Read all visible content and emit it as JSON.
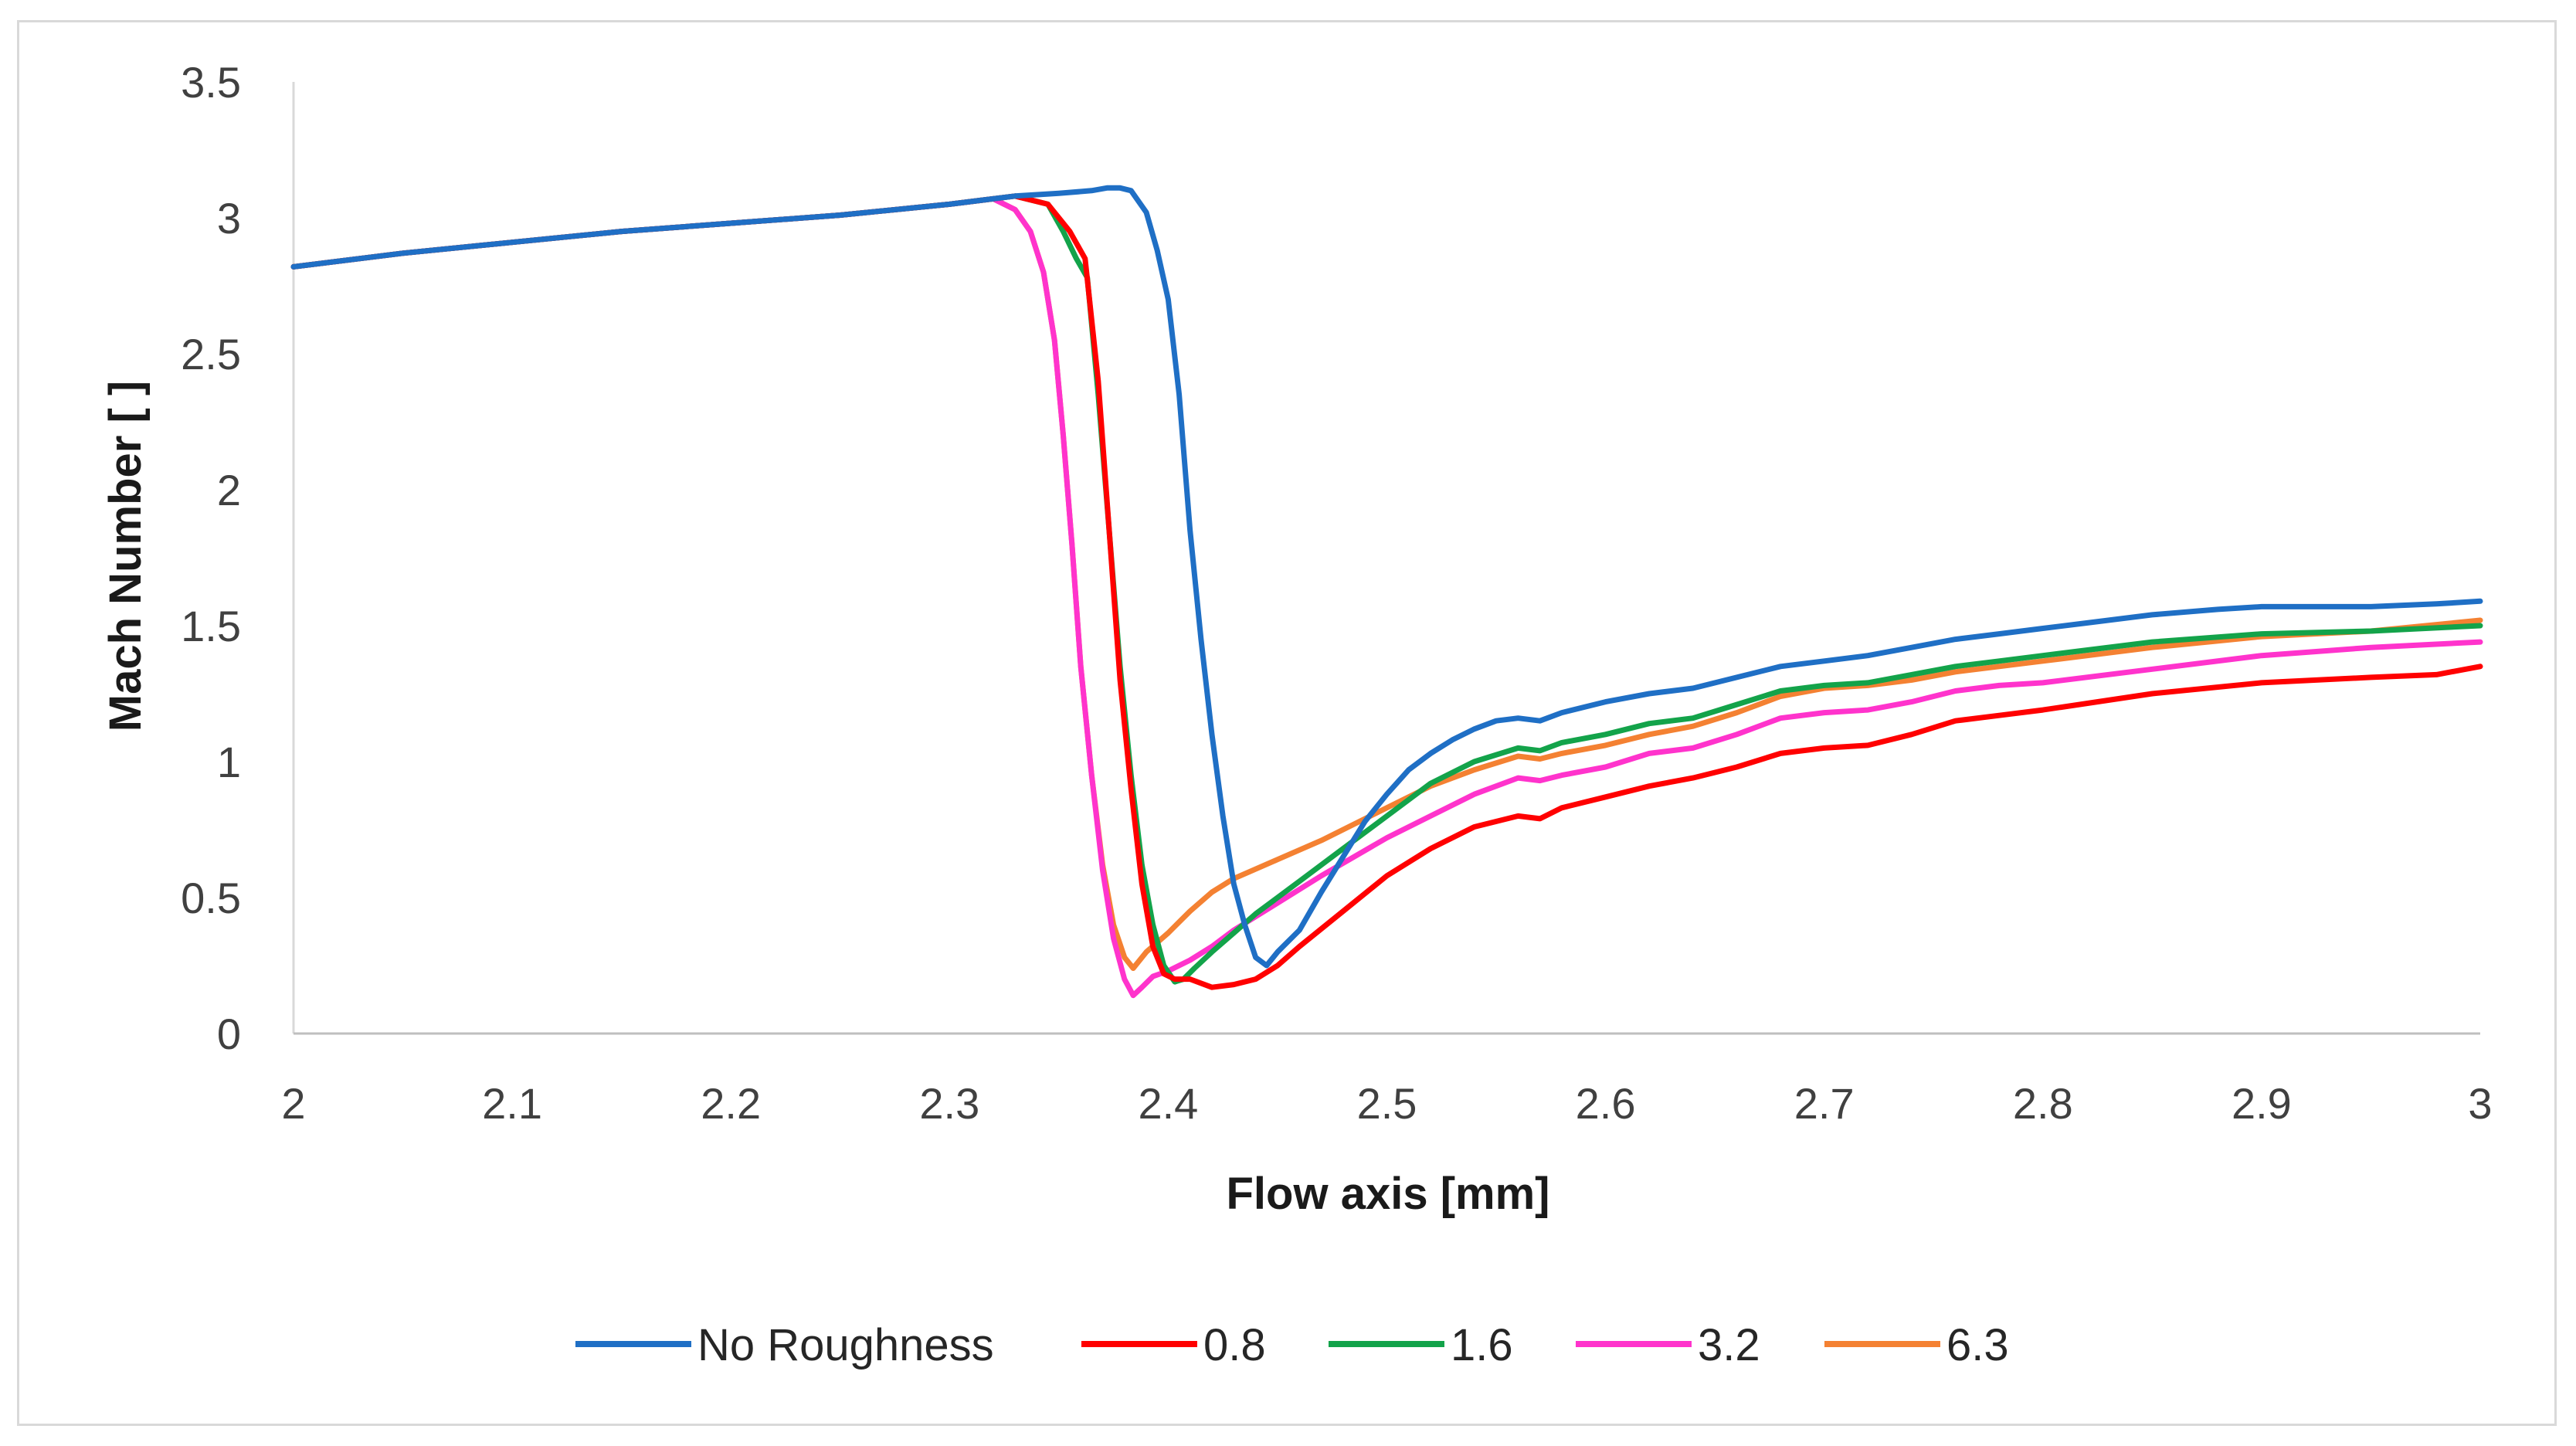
{
  "chart_data": {
    "type": "line",
    "title": "",
    "xlabel": "Flow axis [mm]",
    "ylabel": "Mach Number [ ]",
    "xlim": [
      2,
      3
    ],
    "ylim": [
      0,
      3.5
    ],
    "xticks": [
      "2",
      "2.1",
      "2.2",
      "2.3",
      "2.4",
      "2.5",
      "2.6",
      "2.7",
      "2.8",
      "2.9",
      "3"
    ],
    "yticks": [
      "0",
      "0.5",
      "1",
      "1.5",
      "2",
      "2.5",
      "3",
      "3.5"
    ],
    "grid": false,
    "legend_position": "bottom",
    "series": [
      {
        "name": "No Roughness",
        "color": "#1f6fc5",
        "x": [
          2.0,
          2.05,
          2.1,
          2.15,
          2.2,
          2.25,
          2.3,
          2.33,
          2.35,
          2.365,
          2.372,
          2.378,
          2.383,
          2.39,
          2.395,
          2.4,
          2.405,
          2.41,
          2.415,
          2.42,
          2.425,
          2.43,
          2.435,
          2.44,
          2.445,
          2.45,
          2.46,
          2.47,
          2.48,
          2.49,
          2.5,
          2.51,
          2.52,
          2.53,
          2.54,
          2.55,
          2.56,
          2.57,
          2.58,
          2.6,
          2.62,
          2.64,
          2.66,
          2.68,
          2.7,
          2.72,
          2.74,
          2.76,
          2.78,
          2.8,
          2.82,
          2.85,
          2.88,
          2.9,
          2.95,
          2.98,
          3.0
        ],
        "y": [
          2.82,
          2.87,
          2.91,
          2.95,
          2.98,
          3.01,
          3.05,
          3.08,
          3.09,
          3.1,
          3.11,
          3.11,
          3.1,
          3.02,
          2.88,
          2.7,
          2.35,
          1.85,
          1.45,
          1.1,
          0.8,
          0.55,
          0.4,
          0.28,
          0.25,
          0.3,
          0.38,
          0.52,
          0.65,
          0.78,
          0.88,
          0.97,
          1.03,
          1.08,
          1.12,
          1.15,
          1.16,
          1.15,
          1.18,
          1.22,
          1.25,
          1.27,
          1.31,
          1.35,
          1.37,
          1.39,
          1.42,
          1.45,
          1.47,
          1.49,
          1.51,
          1.54,
          1.56,
          1.57,
          1.57,
          1.58,
          1.59
        ]
      },
      {
        "name": "0.8",
        "color": "#ff0000",
        "x": [
          2.0,
          2.05,
          2.1,
          2.15,
          2.2,
          2.25,
          2.3,
          2.33,
          2.345,
          2.355,
          2.362,
          2.368,
          2.373,
          2.378,
          2.383,
          2.388,
          2.393,
          2.398,
          2.403,
          2.41,
          2.42,
          2.43,
          2.44,
          2.45,
          2.46,
          2.48,
          2.5,
          2.52,
          2.54,
          2.56,
          2.57,
          2.58,
          2.6,
          2.62,
          2.64,
          2.66,
          2.68,
          2.7,
          2.72,
          2.74,
          2.76,
          2.78,
          2.8,
          2.85,
          2.9,
          2.95,
          2.98,
          3.0
        ],
        "y": [
          2.82,
          2.87,
          2.91,
          2.95,
          2.98,
          3.01,
          3.05,
          3.08,
          3.05,
          2.95,
          2.85,
          2.4,
          1.85,
          1.3,
          0.9,
          0.55,
          0.32,
          0.22,
          0.2,
          0.2,
          0.17,
          0.18,
          0.2,
          0.25,
          0.32,
          0.45,
          0.58,
          0.68,
          0.76,
          0.8,
          0.79,
          0.83,
          0.87,
          0.91,
          0.94,
          0.98,
          1.03,
          1.05,
          1.06,
          1.1,
          1.15,
          1.17,
          1.19,
          1.25,
          1.29,
          1.31,
          1.32,
          1.35
        ]
      },
      {
        "name": "1.6",
        "color": "#13a34a",
        "x": [
          2.0,
          2.05,
          2.1,
          2.15,
          2.2,
          2.25,
          2.3,
          2.33,
          2.345,
          2.352,
          2.358,
          2.363,
          2.368,
          2.373,
          2.378,
          2.383,
          2.388,
          2.393,
          2.398,
          2.403,
          2.407,
          2.412,
          2.42,
          2.43,
          2.44,
          2.46,
          2.48,
          2.5,
          2.52,
          2.54,
          2.56,
          2.57,
          2.58,
          2.6,
          2.62,
          2.64,
          2.66,
          2.68,
          2.7,
          2.72,
          2.74,
          2.76,
          2.78,
          2.8,
          2.85,
          2.9,
          2.95,
          3.0
        ],
        "y": [
          2.82,
          2.87,
          2.91,
          2.95,
          2.98,
          3.01,
          3.05,
          3.08,
          3.05,
          2.95,
          2.85,
          2.78,
          2.35,
          1.85,
          1.35,
          0.95,
          0.62,
          0.4,
          0.25,
          0.19,
          0.2,
          0.24,
          0.3,
          0.37,
          0.44,
          0.56,
          0.68,
          0.8,
          0.92,
          1.0,
          1.05,
          1.04,
          1.07,
          1.1,
          1.14,
          1.16,
          1.21,
          1.26,
          1.28,
          1.29,
          1.32,
          1.35,
          1.37,
          1.39,
          1.44,
          1.47,
          1.48,
          1.5
        ]
      },
      {
        "name": "3.2",
        "color": "#ff33cc",
        "x": [
          2.0,
          2.05,
          2.1,
          2.15,
          2.2,
          2.25,
          2.3,
          2.32,
          2.33,
          2.337,
          2.343,
          2.348,
          2.352,
          2.356,
          2.36,
          2.365,
          2.37,
          2.375,
          2.38,
          2.384,
          2.388,
          2.393,
          2.4,
          2.41,
          2.42,
          2.43,
          2.45,
          2.47,
          2.5,
          2.52,
          2.54,
          2.56,
          2.57,
          2.58,
          2.6,
          2.62,
          2.64,
          2.66,
          2.68,
          2.7,
          2.72,
          2.74,
          2.76,
          2.78,
          2.8,
          2.85,
          2.9,
          2.95,
          3.0
        ],
        "y": [
          2.82,
          2.87,
          2.91,
          2.95,
          2.98,
          3.01,
          3.05,
          3.07,
          3.03,
          2.95,
          2.8,
          2.55,
          2.2,
          1.8,
          1.35,
          0.95,
          0.6,
          0.35,
          0.2,
          0.14,
          0.17,
          0.21,
          0.23,
          0.27,
          0.32,
          0.38,
          0.48,
          0.58,
          0.72,
          0.8,
          0.88,
          0.94,
          0.93,
          0.95,
          0.98,
          1.03,
          1.05,
          1.1,
          1.16,
          1.18,
          1.19,
          1.22,
          1.26,
          1.28,
          1.29,
          1.34,
          1.39,
          1.42,
          1.44
        ]
      },
      {
        "name": "6.3",
        "color": "#f48132",
        "x": [
          2.0,
          2.05,
          2.1,
          2.15,
          2.2,
          2.25,
          2.3,
          2.32,
          2.33,
          2.337,
          2.343,
          2.348,
          2.352,
          2.356,
          2.36,
          2.365,
          2.37,
          2.375,
          2.38,
          2.384,
          2.39,
          2.4,
          2.41,
          2.42,
          2.43,
          2.45,
          2.47,
          2.5,
          2.52,
          2.54,
          2.56,
          2.57,
          2.58,
          2.6,
          2.62,
          2.64,
          2.66,
          2.68,
          2.7,
          2.72,
          2.74,
          2.76,
          2.78,
          2.8,
          2.85,
          2.9,
          2.95,
          3.0
        ],
        "y": [
          2.82,
          2.87,
          2.91,
          2.95,
          2.98,
          3.01,
          3.05,
          3.07,
          3.03,
          2.95,
          2.8,
          2.55,
          2.2,
          1.8,
          1.35,
          0.95,
          0.62,
          0.4,
          0.28,
          0.24,
          0.3,
          0.37,
          0.45,
          0.52,
          0.57,
          0.64,
          0.71,
          0.83,
          0.91,
          0.97,
          1.02,
          1.01,
          1.03,
          1.06,
          1.1,
          1.13,
          1.18,
          1.24,
          1.27,
          1.28,
          1.3,
          1.33,
          1.35,
          1.37,
          1.42,
          1.46,
          1.48,
          1.52
        ]
      }
    ]
  }
}
